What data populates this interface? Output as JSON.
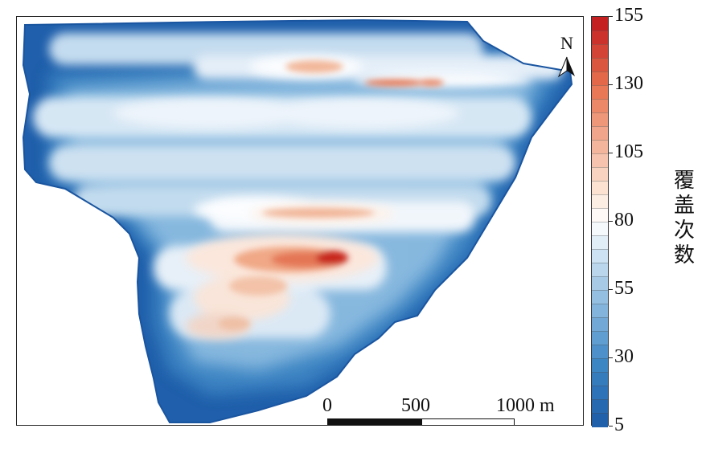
{
  "map": {
    "north_label": "N",
    "north_arrow_icon": "north-arrow-icon",
    "scale_bar": {
      "labels": [
        "0",
        "500",
        "1000 m"
      ]
    },
    "legend": {
      "title": "覆盖次数",
      "min": 5,
      "max": 155,
      "tick_labels": [
        "155",
        "130",
        "105",
        "80",
        "55",
        "30",
        "5"
      ],
      "colors": {
        "high": "#c0171d",
        "mid_high": "#e8734f",
        "mid": "#fbe3d3",
        "neutral": "#ffffff",
        "mid_low": "#b7d5ec",
        "low": "#3c86c4",
        "lowest": "#1c5aa6"
      }
    }
  }
}
